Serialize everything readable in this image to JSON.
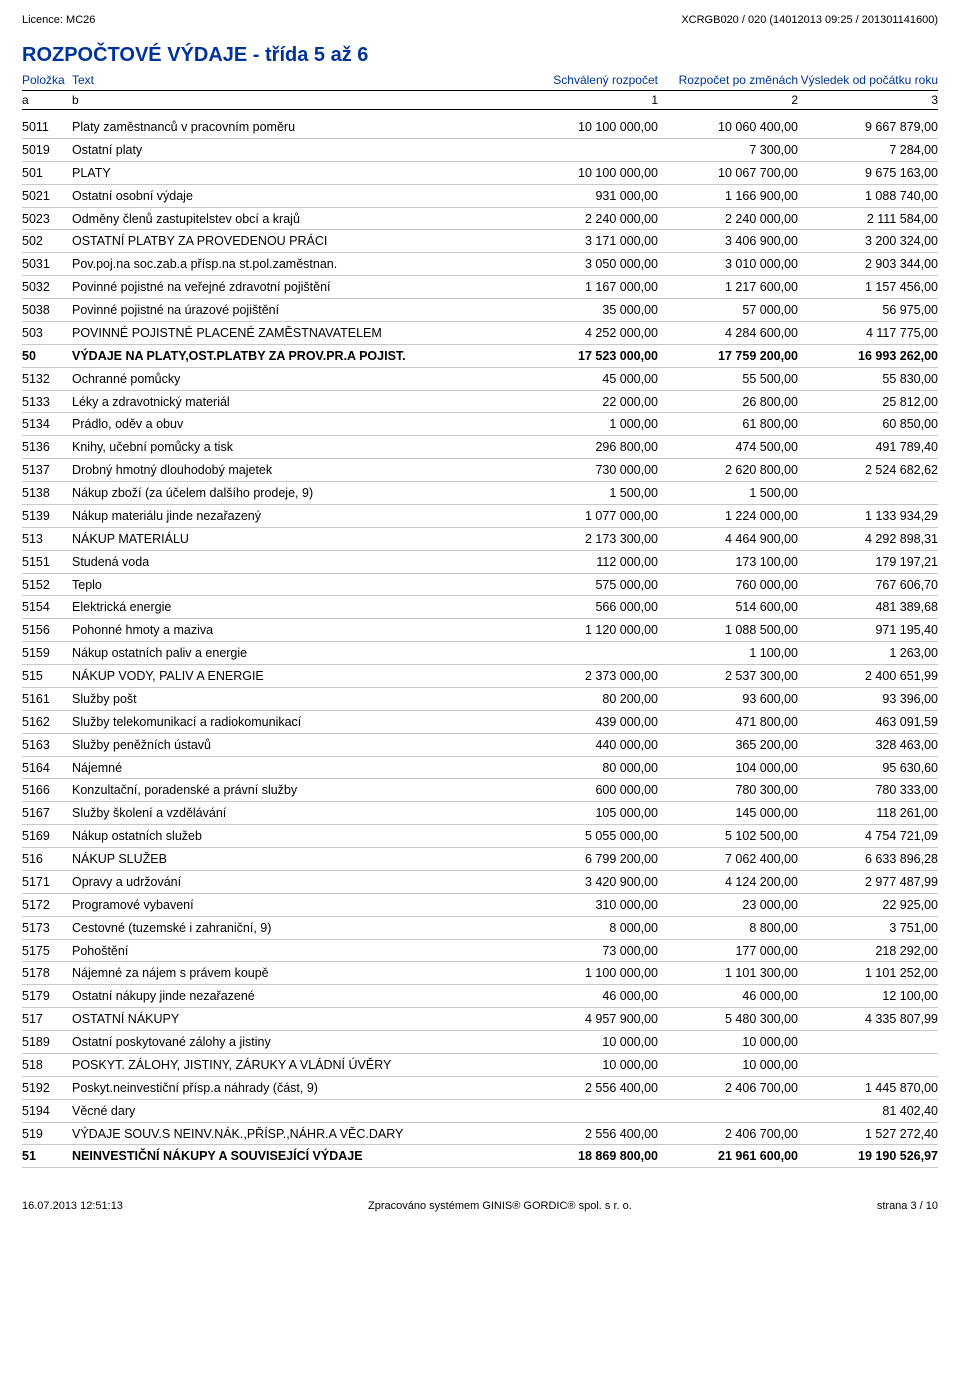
{
  "top": {
    "licence_label": "Licence:",
    "licence_value": "MC26",
    "doc_id": "XCRGB020 / 020  (14012013 09:25 / 201301141600)"
  },
  "section_title": "ROZPOČTOVÉ VÝDAJE - třída 5 až 6",
  "columns": {
    "c1": "Položka",
    "c2": "Text",
    "c3": "Schválený rozpočet",
    "c4": "Rozpočet po změnách",
    "c5": "Výsledek od počátku roku",
    "s1": "a",
    "s2": "b",
    "s3": "1",
    "s4": "2",
    "s5": "3"
  },
  "rows": [
    {
      "code": "5011",
      "text": "Platy zaměstnanců v pracovním poměru",
      "v1": "10 100 000,00",
      "v2": "10 060 400,00",
      "v3": "9 667 879,00",
      "bold": false
    },
    {
      "code": "5019",
      "text": "Ostatní platy",
      "v1": "",
      "v2": "7 300,00",
      "v3": "7 284,00",
      "bold": false
    },
    {
      "code": "501",
      "text": "PLATY",
      "v1": "10 100 000,00",
      "v2": "10 067 700,00",
      "v3": "9 675 163,00",
      "bold": false
    },
    {
      "code": "5021",
      "text": "Ostatní osobní výdaje",
      "v1": "931 000,00",
      "v2": "1 166 900,00",
      "v3": "1 088 740,00",
      "bold": false
    },
    {
      "code": "5023",
      "text": "Odměny členů zastupitelstev obcí a krajů",
      "v1": "2 240 000,00",
      "v2": "2 240 000,00",
      "v3": "2 111 584,00",
      "bold": false
    },
    {
      "code": "502",
      "text": "OSTATNÍ PLATBY ZA PROVEDENOU PRÁCI",
      "v1": "3 171 000,00",
      "v2": "3 406 900,00",
      "v3": "3 200 324,00",
      "bold": false
    },
    {
      "code": "5031",
      "text": "Pov.poj.na soc.zab.a přísp.na st.pol.zaměstnan.",
      "v1": "3 050 000,00",
      "v2": "3 010 000,00",
      "v3": "2 903 344,00",
      "bold": false
    },
    {
      "code": "5032",
      "text": "Povinné pojistné na veřejné zdravotní pojištění",
      "v1": "1 167 000,00",
      "v2": "1 217 600,00",
      "v3": "1 157 456,00",
      "bold": false
    },
    {
      "code": "5038",
      "text": "Povinné pojistné na úrazové pojištění",
      "v1": "35 000,00",
      "v2": "57 000,00",
      "v3": "56 975,00",
      "bold": false
    },
    {
      "code": "503",
      "text": "POVINNÉ POJISTNÉ PLACENÉ ZAMĚSTNAVATELEM",
      "v1": "4 252 000,00",
      "v2": "4 284 600,00",
      "v3": "4 117 775,00",
      "bold": false
    },
    {
      "code": "50",
      "text": "VÝDAJE NA PLATY,OST.PLATBY ZA PROV.PR.A POJIST.",
      "v1": "17 523 000,00",
      "v2": "17 759 200,00",
      "v3": "16 993 262,00",
      "bold": true
    },
    {
      "code": "5132",
      "text": "Ochranné pomůcky",
      "v1": "45 000,00",
      "v2": "55 500,00",
      "v3": "55 830,00",
      "bold": false
    },
    {
      "code": "5133",
      "text": "Léky a zdravotnický materiál",
      "v1": "22 000,00",
      "v2": "26 800,00",
      "v3": "25 812,00",
      "bold": false
    },
    {
      "code": "5134",
      "text": "Prádlo, oděv a obuv",
      "v1": "1 000,00",
      "v2": "61 800,00",
      "v3": "60 850,00",
      "bold": false
    },
    {
      "code": "5136",
      "text": "Knihy, učební pomůcky a tisk",
      "v1": "296 800,00",
      "v2": "474 500,00",
      "v3": "491 789,40",
      "bold": false
    },
    {
      "code": "5137",
      "text": "Drobný hmotný dlouhodobý majetek",
      "v1": "730 000,00",
      "v2": "2 620 800,00",
      "v3": "2 524 682,62",
      "bold": false
    },
    {
      "code": "5138",
      "text": "Nákup zboží (za účelem dalšího prodeje, 9)",
      "v1": "1 500,00",
      "v2": "1 500,00",
      "v3": "",
      "bold": false
    },
    {
      "code": "5139",
      "text": "Nákup materiálu jinde nezařazený",
      "v1": "1 077 000,00",
      "v2": "1 224 000,00",
      "v3": "1 133 934,29",
      "bold": false
    },
    {
      "code": "513",
      "text": "NÁKUP MATERIÁLU",
      "v1": "2 173 300,00",
      "v2": "4 464 900,00",
      "v3": "4 292 898,31",
      "bold": false
    },
    {
      "code": "5151",
      "text": "Studená voda",
      "v1": "112 000,00",
      "v2": "173 100,00",
      "v3": "179 197,21",
      "bold": false
    },
    {
      "code": "5152",
      "text": "Teplo",
      "v1": "575 000,00",
      "v2": "760 000,00",
      "v3": "767 606,70",
      "bold": false
    },
    {
      "code": "5154",
      "text": "Elektrická energie",
      "v1": "566 000,00",
      "v2": "514 600,00",
      "v3": "481 389,68",
      "bold": false
    },
    {
      "code": "5156",
      "text": "Pohonné hmoty a maziva",
      "v1": "1 120 000,00",
      "v2": "1 088 500,00",
      "v3": "971 195,40",
      "bold": false
    },
    {
      "code": "5159",
      "text": "Nákup ostatních paliv a energie",
      "v1": "",
      "v2": "1 100,00",
      "v3": "1 263,00",
      "bold": false
    },
    {
      "code": "515",
      "text": "NÁKUP VODY, PALIV A ENERGIE",
      "v1": "2 373 000,00",
      "v2": "2 537 300,00",
      "v3": "2 400 651,99",
      "bold": false
    },
    {
      "code": "5161",
      "text": "Služby pošt",
      "v1": "80 200,00",
      "v2": "93 600,00",
      "v3": "93 396,00",
      "bold": false
    },
    {
      "code": "5162",
      "text": "Služby telekomunikací a radiokomunikací",
      "v1": "439 000,00",
      "v2": "471 800,00",
      "v3": "463 091,59",
      "bold": false
    },
    {
      "code": "5163",
      "text": "Služby peněžních ústavů",
      "v1": "440 000,00",
      "v2": "365 200,00",
      "v3": "328 463,00",
      "bold": false
    },
    {
      "code": "5164",
      "text": "Nájemné",
      "v1": "80 000,00",
      "v2": "104 000,00",
      "v3": "95 630,60",
      "bold": false
    },
    {
      "code": "5166",
      "text": "Konzultační, poradenské a právní služby",
      "v1": "600 000,00",
      "v2": "780 300,00",
      "v3": "780 333,00",
      "bold": false
    },
    {
      "code": "5167",
      "text": "Služby školení a vzdělávání",
      "v1": "105 000,00",
      "v2": "145 000,00",
      "v3": "118 261,00",
      "bold": false
    },
    {
      "code": "5169",
      "text": "Nákup ostatních služeb",
      "v1": "5 055 000,00",
      "v2": "5 102 500,00",
      "v3": "4 754 721,09",
      "bold": false
    },
    {
      "code": "516",
      "text": "NÁKUP SLUŽEB",
      "v1": "6 799 200,00",
      "v2": "7 062 400,00",
      "v3": "6 633 896,28",
      "bold": false
    },
    {
      "code": "5171",
      "text": "Opravy a udržování",
      "v1": "3 420 900,00",
      "v2": "4 124 200,00",
      "v3": "2 977 487,99",
      "bold": false
    },
    {
      "code": "5172",
      "text": "Programové vybavení",
      "v1": "310 000,00",
      "v2": "23 000,00",
      "v3": "22 925,00",
      "bold": false
    },
    {
      "code": "5173",
      "text": "Cestovné (tuzemské i zahraniční, 9)",
      "v1": "8 000,00",
      "v2": "8 800,00",
      "v3": "3 751,00",
      "bold": false
    },
    {
      "code": "5175",
      "text": "Pohoštění",
      "v1": "73 000,00",
      "v2": "177 000,00",
      "v3": "218 292,00",
      "bold": false
    },
    {
      "code": "5178",
      "text": "Nájemné za nájem s právem koupě",
      "v1": "1 100 000,00",
      "v2": "1 101 300,00",
      "v3": "1 101 252,00",
      "bold": false
    },
    {
      "code": "5179",
      "text": "Ostatní nákupy jinde nezařazené",
      "v1": "46 000,00",
      "v2": "46 000,00",
      "v3": "12 100,00",
      "bold": false
    },
    {
      "code": "517",
      "text": "OSTATNÍ NÁKUPY",
      "v1": "4 957 900,00",
      "v2": "5 480 300,00",
      "v3": "4 335 807,99",
      "bold": false
    },
    {
      "code": "5189",
      "text": "Ostatní poskytované zálohy a jistiny",
      "v1": "10 000,00",
      "v2": "10 000,00",
      "v3": "",
      "bold": false
    },
    {
      "code": "518",
      "text": "POSKYT. ZÁLOHY, JISTINY, ZÁRUKY A VLÁDNÍ ÚVĚRY",
      "v1": "10 000,00",
      "v2": "10 000,00",
      "v3": "",
      "bold": false
    },
    {
      "code": "5192",
      "text": "Poskyt.neinvestiční přísp.a náhrady (část, 9)",
      "v1": "2 556 400,00",
      "v2": "2 406 700,00",
      "v3": "1 445 870,00",
      "bold": false
    },
    {
      "code": "5194",
      "text": "Věcné dary",
      "v1": "",
      "v2": "",
      "v3": "81 402,40",
      "bold": false
    },
    {
      "code": "519",
      "text": "VÝDAJE SOUV.S NEINV.NÁK.,PŘÍSP.,NÁHR.A VĚC.DARY",
      "v1": "2 556 400,00",
      "v2": "2 406 700,00",
      "v3": "1 527 272,40",
      "bold": false
    },
    {
      "code": "51",
      "text": "NEINVESTIČNÍ NÁKUPY A SOUVISEJÍCÍ VÝDAJE",
      "v1": "18 869 800,00",
      "v2": "21 961 600,00",
      "v3": "19 190 526,97",
      "bold": true
    }
  ],
  "footer": {
    "left": "16.07.2013 12:51:13",
    "center": "Zpracováno systémem  GINIS® GORDIC® spol. s  r. o.",
    "right": "strana 3 / 10"
  },
  "style": {
    "title_color": "#003399",
    "header_color": "#003399",
    "row_border": "#c8c8c8"
  }
}
